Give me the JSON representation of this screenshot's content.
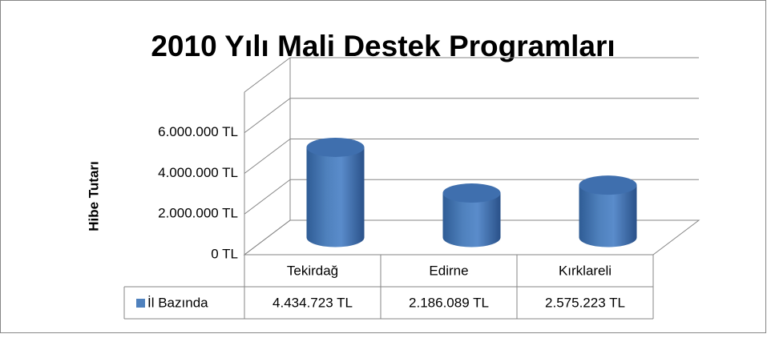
{
  "chart_data": {
    "type": "bar3d",
    "title": "2010 Yılı Mali Destek Programları",
    "y_axis_label": "Hibe Tutarı",
    "categories": [
      "Tekirdağ",
      "Edirne",
      "Kırklareli"
    ],
    "series": [
      {
        "name": "İl Bazında",
        "color": "#4f81bd",
        "values": [
          4434723,
          2186089,
          2575223
        ],
        "value_labels": [
          "4.434.723 TL",
          "2.186.089 TL",
          "2.575.223 TL"
        ]
      }
    ],
    "ylim": [
      0,
      8000000
    ],
    "yticks": [
      {
        "value": 0,
        "label": "0 TL"
      },
      {
        "value": 2000000,
        "label": "2.000.000 TL"
      },
      {
        "value": 4000000,
        "label": "4.000.000 TL"
      },
      {
        "value": 6000000,
        "label": "6.000.000 TL"
      }
    ],
    "grid": true,
    "legend": "table"
  }
}
